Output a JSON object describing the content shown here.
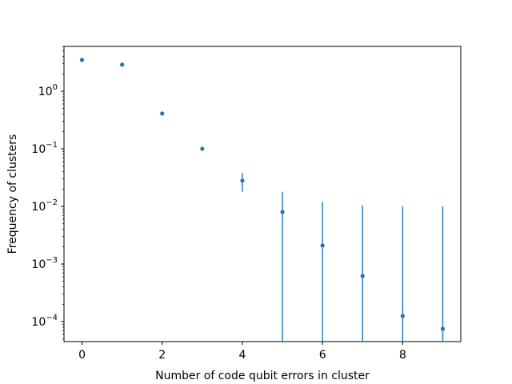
{
  "chart_data": {
    "type": "scatter",
    "title": "",
    "xlabel": "Number of code qubit errors in cluster",
    "ylabel": "Frequency of clusters",
    "yscale": "log",
    "xlim": [
      -0.45,
      9.45
    ],
    "ylim": [
      4.5e-05,
      6
    ],
    "grid": false,
    "marker_color": "#1f77b4",
    "x_ticks": [
      {
        "value": 0,
        "label": "0"
      },
      {
        "value": 2,
        "label": "2"
      },
      {
        "value": 4,
        "label": "4"
      },
      {
        "value": 6,
        "label": "6"
      },
      {
        "value": 8,
        "label": "8"
      }
    ],
    "y_ticks": [
      {
        "value": 0.0001,
        "base": "10",
        "exp": "−4"
      },
      {
        "value": 0.001,
        "base": "10",
        "exp": "−3"
      },
      {
        "value": 0.01,
        "base": "10",
        "exp": "−2"
      },
      {
        "value": 0.1,
        "base": "10",
        "exp": "−1"
      },
      {
        "value": 1,
        "base": "10",
        "exp": "0"
      }
    ],
    "points": [
      {
        "x": 0,
        "y": 3.5
      },
      {
        "x": 1,
        "y": 2.9
      },
      {
        "x": 2,
        "y": 0.41
      },
      {
        "x": 3,
        "y": 0.1
      },
      {
        "x": 4,
        "y": 0.028,
        "err_low": 0.018,
        "err_high": 0.038
      },
      {
        "x": 5,
        "y": 0.008,
        "err_low": 1e-06,
        "err_high": 0.018
      },
      {
        "x": 6,
        "y": 0.0021,
        "err_low": 1e-06,
        "err_high": 0.012
      },
      {
        "x": 7,
        "y": 0.00062,
        "err_low": 1e-06,
        "err_high": 0.0105
      },
      {
        "x": 8,
        "y": 0.000125,
        "err_low": 1e-06,
        "err_high": 0.0101
      },
      {
        "x": 9,
        "y": 7.5e-05,
        "err_low": 1e-06,
        "err_high": 0.0101
      }
    ]
  }
}
